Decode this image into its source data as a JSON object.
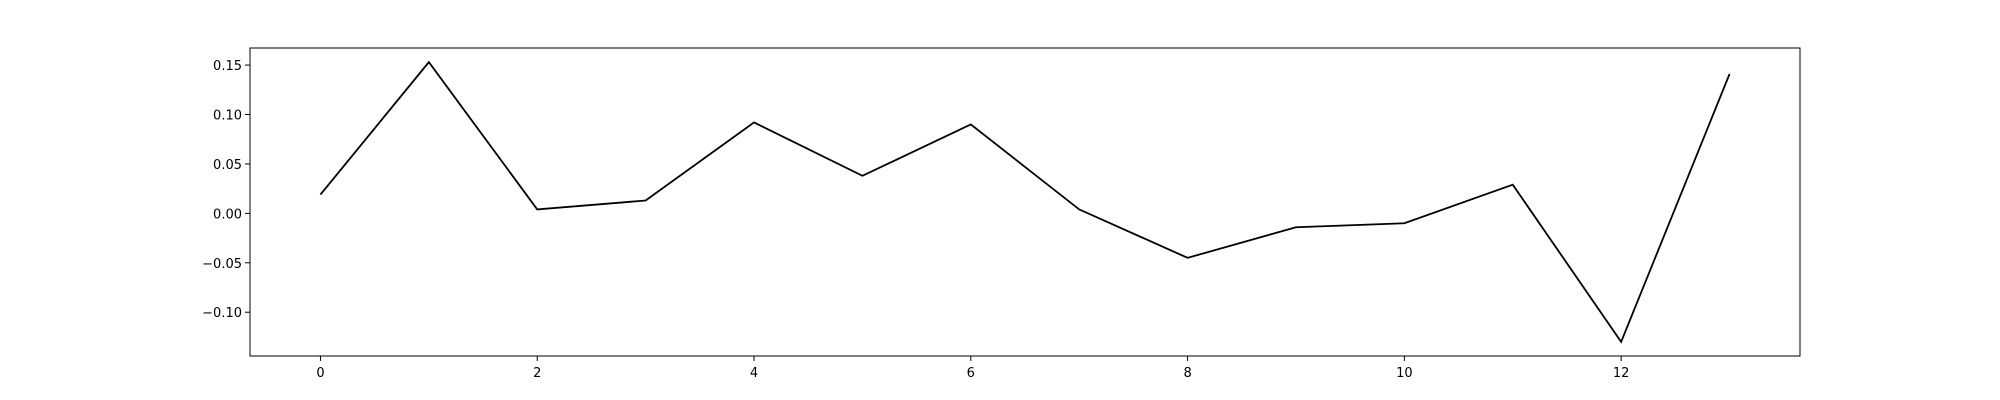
{
  "chart_data": {
    "type": "line",
    "x": [
      0,
      1,
      2,
      3,
      4,
      5,
      6,
      7,
      8,
      9,
      10,
      11,
      12,
      13
    ],
    "series": [
      {
        "values": [
          0.019,
          0.153,
          0.004,
          0.013,
          0.092,
          0.038,
          0.09,
          0.004,
          -0.045,
          -0.014,
          -0.01,
          0.029,
          -0.13,
          0.141
        ],
        "color": "#000000"
      }
    ],
    "xlim": [
      -0.65,
      13.65
    ],
    "ylim": [
      -0.1443,
      0.1673
    ],
    "xticks": [
      0,
      2,
      4,
      6,
      8,
      10,
      12
    ],
    "xtick_labels": [
      "0",
      "2",
      "4",
      "6",
      "8",
      "10",
      "12"
    ],
    "yticks": [
      -0.1,
      -0.05,
      0.0,
      0.05,
      0.1,
      0.15
    ],
    "ytick_labels": [
      "−0.10",
      "−0.05",
      "0.00",
      "0.05",
      "0.10",
      "0.15"
    ],
    "grid": false,
    "legend": "none"
  }
}
